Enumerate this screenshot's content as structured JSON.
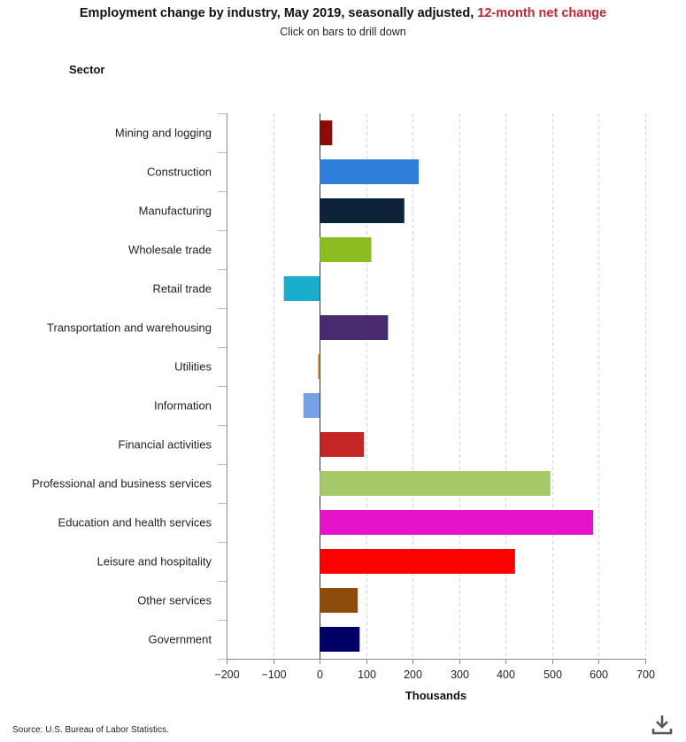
{
  "header": {
    "title_main": "Employment change by industry, May 2019, seasonally adjusted, ",
    "title_highlight": "12-month net change",
    "subtitle": "Click on bars to drill down",
    "category_axis_title": "Sector"
  },
  "footer": {
    "source": "Source: U.S. Bureau of Labor Statistics.",
    "download_icon": "download-icon"
  },
  "chart_data": {
    "type": "bar",
    "orientation": "horizontal",
    "title": "Employment change by industry, May 2019, seasonally adjusted, 12-month net change",
    "subtitle": "Click on bars to drill down",
    "xlabel": "Thousands",
    "ylabel": "Sector",
    "xlim": [
      -200,
      700
    ],
    "xticks": [
      -200,
      -100,
      0,
      100,
      200,
      300,
      400,
      500,
      600,
      700
    ],
    "xtick_labels": [
      "−200",
      "−100",
      "0",
      "100",
      "200",
      "300",
      "400",
      "500",
      "600",
      "700"
    ],
    "grid": "vertical dashed",
    "categories": [
      "Mining and logging",
      "Construction",
      "Manufacturing",
      "Wholesale trade",
      "Retail trade",
      "Transportation and warehousing",
      "Utilities",
      "Information",
      "Financial activities",
      "Professional and business services",
      "Education and health services",
      "Leisure and hospitality",
      "Other services",
      "Government"
    ],
    "values": [
      27,
      213,
      182,
      111,
      -77,
      147,
      -4,
      -35,
      95,
      496,
      588,
      420,
      82,
      86
    ],
    "colors": [
      "#8b0a0a",
      "#2f7ed8",
      "#0d233a",
      "#8bbc21",
      "#1aadce",
      "#492970",
      "#f28f43",
      "#77a1e5",
      "#c42525",
      "#a6c96a",
      "#e513c9",
      "#ff0000",
      "#8d4b0c",
      "#000066"
    ]
  }
}
